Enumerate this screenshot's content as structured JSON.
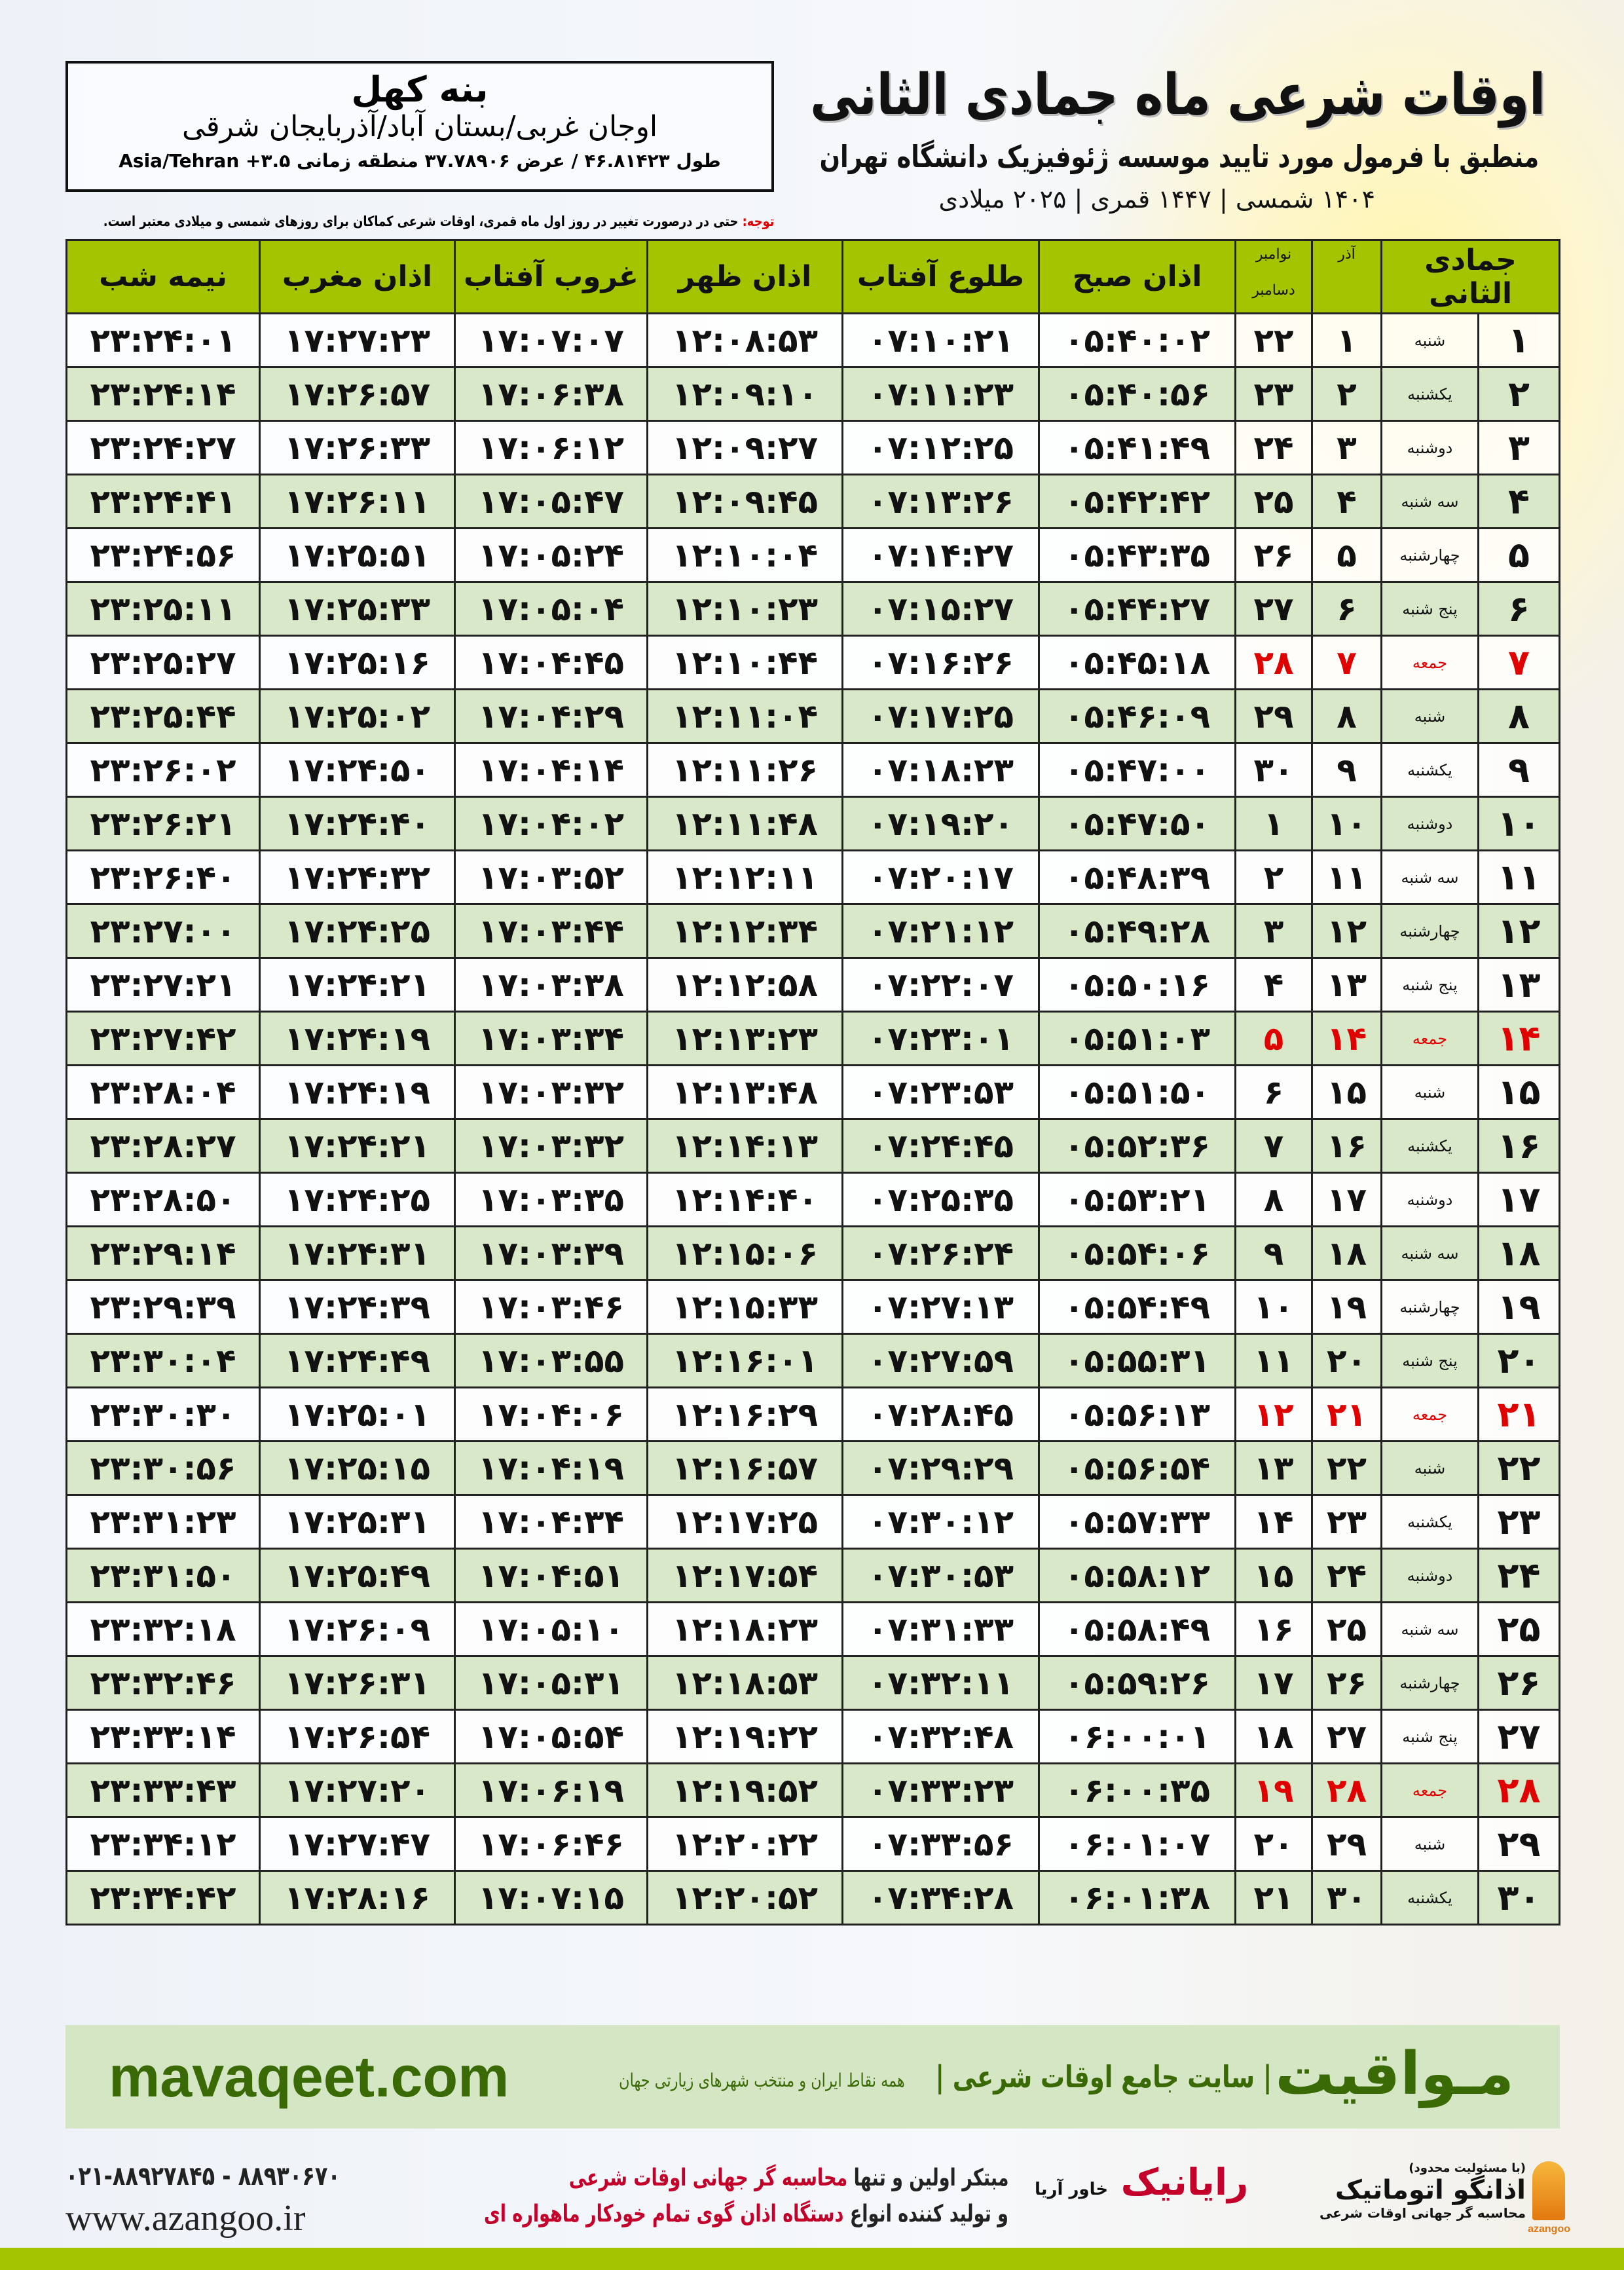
{
  "header": {
    "title": "اوقات شرعی ماه جمادی الثانی",
    "subtitle": "منطبق با فرمول مورد تایید موسسه ژئوفیزیک دانشگاه تهران",
    "years": "۱۴۰۴ شمسی | ۱۴۴۷ قمری | ۲۰۲۵ میلادی"
  },
  "location": {
    "city": "بنه کهل",
    "province": "اوجان غربی/بستان آباد/آذربایجان شرقی",
    "coords": "طول ۴۶.۸۱۴۲۳ / عرض ۳۷.۷۸۹۰۶ منطقه زمانی ۳.۵+ Asia/Tehran"
  },
  "note": {
    "label": "توجه:",
    "text": " حتی در درصورت تغییر در روز اول ماه قمری، اوقات شرعی کماکان برای روزهای شمسی و میلادی معتبر است."
  },
  "table": {
    "headers": {
      "hijri": "جمادی الثانی",
      "azar": "آذر",
      "greg_top": "نوامبر",
      "greg_bottom": "دسامبر",
      "sobh": "اذان صبح",
      "tolu": "طلوع آفتاب",
      "zohr": "اذان ظهر",
      "ghorub": "غروب آفتاب",
      "maghrib": "اذان مغرب",
      "nime": "نیمه شب"
    },
    "holiday_color": "#e00000",
    "header_color": "#a5c400",
    "alt_row_color": "#d8e8c8",
    "rows": [
      {
        "d": "۱",
        "w": "شنبه",
        "a": "۱",
        "g": "۲۲",
        "t": [
          "۰۵:۴۰:۰۲",
          "۰۷:۱۰:۲۱",
          "۱۲:۰۸:۵۳",
          "۱۷:۰۷:۰۷",
          "۱۷:۲۷:۲۳",
          "۲۳:۲۴:۰۱"
        ],
        "h": false
      },
      {
        "d": "۲",
        "w": "یکشنبه",
        "a": "۲",
        "g": "۲۳",
        "t": [
          "۰۵:۴۰:۵۶",
          "۰۷:۱۱:۲۳",
          "۱۲:۰۹:۱۰",
          "۱۷:۰۶:۳۸",
          "۱۷:۲۶:۵۷",
          "۲۳:۲۴:۱۴"
        ],
        "h": false
      },
      {
        "d": "۳",
        "w": "دوشنبه",
        "a": "۳",
        "g": "۲۴",
        "t": [
          "۰۵:۴۱:۴۹",
          "۰۷:۱۲:۲۵",
          "۱۲:۰۹:۲۷",
          "۱۷:۰۶:۱۲",
          "۱۷:۲۶:۳۳",
          "۲۳:۲۴:۲۷"
        ],
        "h": false
      },
      {
        "d": "۴",
        "w": "سه شنبه",
        "a": "۴",
        "g": "۲۵",
        "t": [
          "۰۵:۴۲:۴۲",
          "۰۷:۱۳:۲۶",
          "۱۲:۰۹:۴۵",
          "۱۷:۰۵:۴۷",
          "۱۷:۲۶:۱۱",
          "۲۳:۲۴:۴۱"
        ],
        "h": false
      },
      {
        "d": "۵",
        "w": "چهارشنبه",
        "a": "۵",
        "g": "۲۶",
        "t": [
          "۰۵:۴۳:۳۵",
          "۰۷:۱۴:۲۷",
          "۱۲:۱۰:۰۴",
          "۱۷:۰۵:۲۴",
          "۱۷:۲۵:۵۱",
          "۲۳:۲۴:۵۶"
        ],
        "h": false
      },
      {
        "d": "۶",
        "w": "پنج شنبه",
        "a": "۶",
        "g": "۲۷",
        "t": [
          "۰۵:۴۴:۲۷",
          "۰۷:۱۵:۲۷",
          "۱۲:۱۰:۲۳",
          "۱۷:۰۵:۰۴",
          "۱۷:۲۵:۳۳",
          "۲۳:۲۵:۱۱"
        ],
        "h": false
      },
      {
        "d": "۷",
        "w": "جمعه",
        "a": "۷",
        "g": "۲۸",
        "t": [
          "۰۵:۴۵:۱۸",
          "۰۷:۱۶:۲۶",
          "۱۲:۱۰:۴۴",
          "۱۷:۰۴:۴۵",
          "۱۷:۲۵:۱۶",
          "۲۳:۲۵:۲۷"
        ],
        "h": true
      },
      {
        "d": "۸",
        "w": "شنبه",
        "a": "۸",
        "g": "۲۹",
        "t": [
          "۰۵:۴۶:۰۹",
          "۰۷:۱۷:۲۵",
          "۱۲:۱۱:۰۴",
          "۱۷:۰۴:۲۹",
          "۱۷:۲۵:۰۲",
          "۲۳:۲۵:۴۴"
        ],
        "h": false
      },
      {
        "d": "۹",
        "w": "یکشنبه",
        "a": "۹",
        "g": "۳۰",
        "t": [
          "۰۵:۴۷:۰۰",
          "۰۷:۱۸:۲۳",
          "۱۲:۱۱:۲۶",
          "۱۷:۰۴:۱۴",
          "۱۷:۲۴:۵۰",
          "۲۳:۲۶:۰۲"
        ],
        "h": false
      },
      {
        "d": "۱۰",
        "w": "دوشنبه",
        "a": "۱۰",
        "g": "۱",
        "t": [
          "۰۵:۴۷:۵۰",
          "۰۷:۱۹:۲۰",
          "۱۲:۱۱:۴۸",
          "۱۷:۰۴:۰۲",
          "۱۷:۲۴:۴۰",
          "۲۳:۲۶:۲۱"
        ],
        "h": false
      },
      {
        "d": "۱۱",
        "w": "سه شنبه",
        "a": "۱۱",
        "g": "۲",
        "t": [
          "۰۵:۴۸:۳۹",
          "۰۷:۲۰:۱۷",
          "۱۲:۱۲:۱۱",
          "۱۷:۰۳:۵۲",
          "۱۷:۲۴:۳۲",
          "۲۳:۲۶:۴۰"
        ],
        "h": false
      },
      {
        "d": "۱۲",
        "w": "چهارشنبه",
        "a": "۱۲",
        "g": "۳",
        "t": [
          "۰۵:۴۹:۲۸",
          "۰۷:۲۱:۱۲",
          "۱۲:۱۲:۳۴",
          "۱۷:۰۳:۴۴",
          "۱۷:۲۴:۲۵",
          "۲۳:۲۷:۰۰"
        ],
        "h": false
      },
      {
        "d": "۱۳",
        "w": "پنج شنبه",
        "a": "۱۳",
        "g": "۴",
        "t": [
          "۰۵:۵۰:۱۶",
          "۰۷:۲۲:۰۷",
          "۱۲:۱۲:۵۸",
          "۱۷:۰۳:۳۸",
          "۱۷:۲۴:۲۱",
          "۲۳:۲۷:۲۱"
        ],
        "h": false
      },
      {
        "d": "۱۴",
        "w": "جمعه",
        "a": "۱۴",
        "g": "۵",
        "t": [
          "۰۵:۵۱:۰۳",
          "۰۷:۲۳:۰۱",
          "۱۲:۱۳:۲۳",
          "۱۷:۰۳:۳۴",
          "۱۷:۲۴:۱۹",
          "۲۳:۲۷:۴۲"
        ],
        "h": true
      },
      {
        "d": "۱۵",
        "w": "شنبه",
        "a": "۱۵",
        "g": "۶",
        "t": [
          "۰۵:۵۱:۵۰",
          "۰۷:۲۳:۵۳",
          "۱۲:۱۳:۴۸",
          "۱۷:۰۳:۳۲",
          "۱۷:۲۴:۱۹",
          "۲۳:۲۸:۰۴"
        ],
        "h": false
      },
      {
        "d": "۱۶",
        "w": "یکشنبه",
        "a": "۱۶",
        "g": "۷",
        "t": [
          "۰۵:۵۲:۳۶",
          "۰۷:۲۴:۴۵",
          "۱۲:۱۴:۱۳",
          "۱۷:۰۳:۳۲",
          "۱۷:۲۴:۲۱",
          "۲۳:۲۸:۲۷"
        ],
        "h": false
      },
      {
        "d": "۱۷",
        "w": "دوشنبه",
        "a": "۱۷",
        "g": "۸",
        "t": [
          "۰۵:۵۳:۲۱",
          "۰۷:۲۵:۳۵",
          "۱۲:۱۴:۴۰",
          "۱۷:۰۳:۳۵",
          "۱۷:۲۴:۲۵",
          "۲۳:۲۸:۵۰"
        ],
        "h": false
      },
      {
        "d": "۱۸",
        "w": "سه شنبه",
        "a": "۱۸",
        "g": "۹",
        "t": [
          "۰۵:۵۴:۰۶",
          "۰۷:۲۶:۲۴",
          "۱۲:۱۵:۰۶",
          "۱۷:۰۳:۳۹",
          "۱۷:۲۴:۳۱",
          "۲۳:۲۹:۱۴"
        ],
        "h": false
      },
      {
        "d": "۱۹",
        "w": "چهارشنبه",
        "a": "۱۹",
        "g": "۱۰",
        "t": [
          "۰۵:۵۴:۴۹",
          "۰۷:۲۷:۱۳",
          "۱۲:۱۵:۳۳",
          "۱۷:۰۳:۴۶",
          "۱۷:۲۴:۳۹",
          "۲۳:۲۹:۳۹"
        ],
        "h": false
      },
      {
        "d": "۲۰",
        "w": "پنج شنبه",
        "a": "۲۰",
        "g": "۱۱",
        "t": [
          "۰۵:۵۵:۳۱",
          "۰۷:۲۷:۵۹",
          "۱۲:۱۶:۰۱",
          "۱۷:۰۳:۵۵",
          "۱۷:۲۴:۴۹",
          "۲۳:۳۰:۰۴"
        ],
        "h": false
      },
      {
        "d": "۲۱",
        "w": "جمعه",
        "a": "۲۱",
        "g": "۱۲",
        "t": [
          "۰۵:۵۶:۱۳",
          "۰۷:۲۸:۴۵",
          "۱۲:۱۶:۲۹",
          "۱۷:۰۴:۰۶",
          "۱۷:۲۵:۰۱",
          "۲۳:۳۰:۳۰"
        ],
        "h": true
      },
      {
        "d": "۲۲",
        "w": "شنبه",
        "a": "۲۲",
        "g": "۱۳",
        "t": [
          "۰۵:۵۶:۵۴",
          "۰۷:۲۹:۲۹",
          "۱۲:۱۶:۵۷",
          "۱۷:۰۴:۱۹",
          "۱۷:۲۵:۱۵",
          "۲۳:۳۰:۵۶"
        ],
        "h": false
      },
      {
        "d": "۲۳",
        "w": "یکشنبه",
        "a": "۲۳",
        "g": "۱۴",
        "t": [
          "۰۵:۵۷:۳۳",
          "۰۷:۳۰:۱۲",
          "۱۲:۱۷:۲۵",
          "۱۷:۰۴:۳۴",
          "۱۷:۲۵:۳۱",
          "۲۳:۳۱:۲۳"
        ],
        "h": false
      },
      {
        "d": "۲۴",
        "w": "دوشنبه",
        "a": "۲۴",
        "g": "۱۵",
        "t": [
          "۰۵:۵۸:۱۲",
          "۰۷:۳۰:۵۳",
          "۱۲:۱۷:۵۴",
          "۱۷:۰۴:۵۱",
          "۱۷:۲۵:۴۹",
          "۲۳:۳۱:۵۰"
        ],
        "h": false
      },
      {
        "d": "۲۵",
        "w": "سه شنبه",
        "a": "۲۵",
        "g": "۱۶",
        "t": [
          "۰۵:۵۸:۴۹",
          "۰۷:۳۱:۳۳",
          "۱۲:۱۸:۲۳",
          "۱۷:۰۵:۱۰",
          "۱۷:۲۶:۰۹",
          "۲۳:۳۲:۱۸"
        ],
        "h": false
      },
      {
        "d": "۲۶",
        "w": "چهارشنبه",
        "a": "۲۶",
        "g": "۱۷",
        "t": [
          "۰۵:۵۹:۲۶",
          "۰۷:۳۲:۱۱",
          "۱۲:۱۸:۵۳",
          "۱۷:۰۵:۳۱",
          "۱۷:۲۶:۳۱",
          "۲۳:۳۲:۴۶"
        ],
        "h": false
      },
      {
        "d": "۲۷",
        "w": "پنج شنبه",
        "a": "۲۷",
        "g": "۱۸",
        "t": [
          "۰۶:۰۰:۰۱",
          "۰۷:۳۲:۴۸",
          "۱۲:۱۹:۲۲",
          "۱۷:۰۵:۵۴",
          "۱۷:۲۶:۵۴",
          "۲۳:۳۳:۱۴"
        ],
        "h": false
      },
      {
        "d": "۲۸",
        "w": "جمعه",
        "a": "۲۸",
        "g": "۱۹",
        "t": [
          "۰۶:۰۰:۳۵",
          "۰۷:۳۳:۲۳",
          "۱۲:۱۹:۵۲",
          "۱۷:۰۶:۱۹",
          "۱۷:۲۷:۲۰",
          "۲۳:۳۳:۴۳"
        ],
        "h": true
      },
      {
        "d": "۲۹",
        "w": "شنبه",
        "a": "۲۹",
        "g": "۲۰",
        "t": [
          "۰۶:۰۱:۰۷",
          "۰۷:۳۳:۵۶",
          "۱۲:۲۰:۲۲",
          "۱۷:۰۶:۴۶",
          "۱۷:۲۷:۴۷",
          "۲۳:۳۴:۱۲"
        ],
        "h": false
      },
      {
        "d": "۳۰",
        "w": "یکشنبه",
        "a": "۳۰",
        "g": "۲۱",
        "t": [
          "۰۶:۰۱:۳۸",
          "۰۷:۳۴:۲۸",
          "۱۲:۲۰:۵۲",
          "۱۷:۰۷:۱۵",
          "۱۷:۲۸:۱۶",
          "۲۳:۳۴:۴۲"
        ],
        "h": false
      }
    ]
  },
  "banner": {
    "brand": "مـواقیت",
    "slogan": "| سایت جامع اوقات شرعی |",
    "slogan2": "همه نقاط ایران و منتخب شهرهای زیارتی جهان",
    "site": "mavaqeet.com",
    "color": "#3a6a06"
  },
  "footer": {
    "phone": "۰۲۱-۸۸۹۲۷۸۴۵ - ۸۸۹۳۰۶۷۰",
    "web": "www.azangoo.ir",
    "line1_a": "مبتکر اولین و تنها ",
    "line1_b": "محاسبه گر جهانی اوقات شرعی",
    "line2_a": "و تولید کننده انواع ",
    "line2_b": "دستگاه اذان گوی تمام خودکار ماهواره ای",
    "logo_rayanik": "رایانیک",
    "logo_rayanik_sub": "خاور آریا",
    "logo_azangoo": "اذانگو اتوماتیک",
    "logo_azangoo_sub": "محاسبه گر جهانی اوقات شرعی",
    "logo_azangoo_caption": "(با مسئولیت محدود)",
    "logo_azangoo_en": "azangoo"
  }
}
